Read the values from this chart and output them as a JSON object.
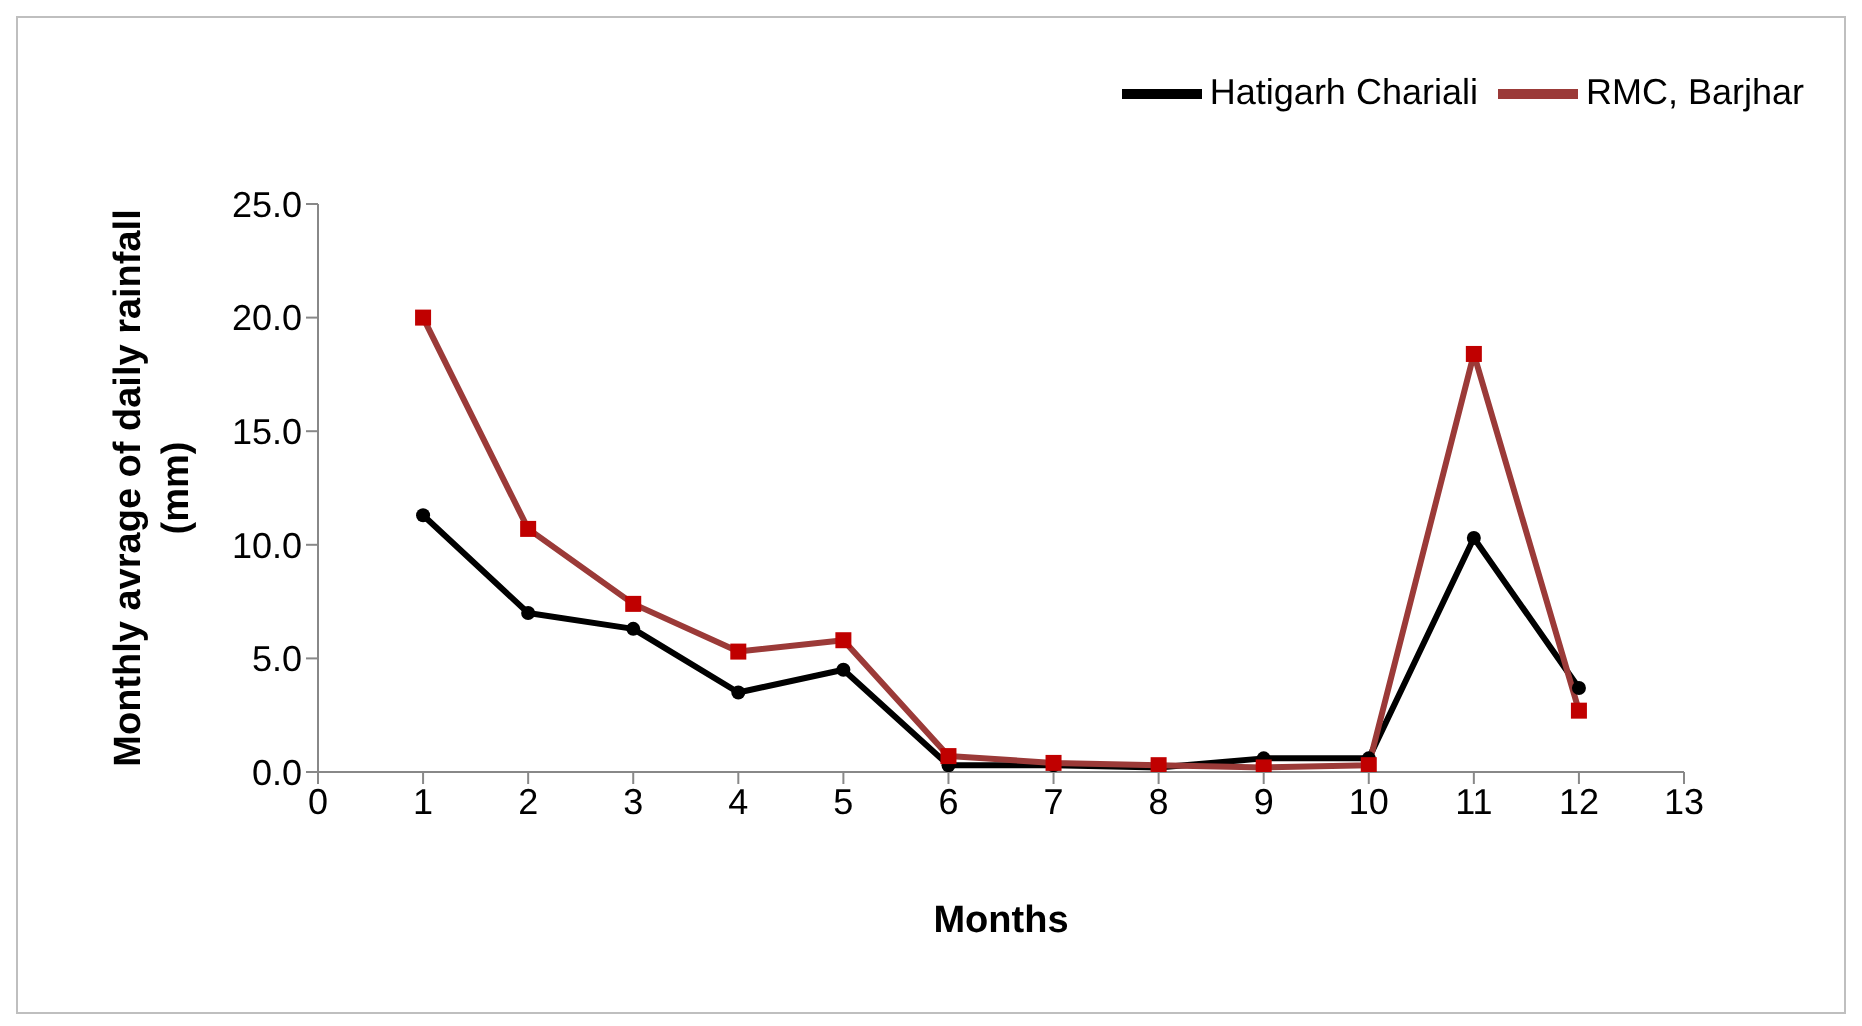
{
  "chart_data": {
    "type": "line",
    "xlabel": "Months",
    "ylabel": "Monthly avrage of daily rainfall\n(mm)",
    "x": [
      1,
      2,
      3,
      4,
      5,
      6,
      7,
      8,
      9,
      10,
      11,
      12
    ],
    "series": [
      {
        "name": "RMC, Barjhar",
        "color": "#9b3a38",
        "marker": "square",
        "values": [
          20.0,
          10.7,
          7.4,
          5.3,
          5.8,
          0.7,
          0.4,
          0.3,
          0.2,
          0.3,
          18.4,
          2.7
        ]
      },
      {
        "name": "Hatigarh Chariali",
        "color": "#000000",
        "marker": "circle",
        "values": [
          11.3,
          7.0,
          6.3,
          3.5,
          4.5,
          0.3,
          0.3,
          0.2,
          0.6,
          0.6,
          10.3,
          3.7
        ]
      }
    ],
    "xlim": [
      0,
      13
    ],
    "xticks": [
      0,
      1,
      2,
      3,
      4,
      5,
      6,
      7,
      8,
      9,
      10,
      11,
      12,
      13
    ],
    "ylim": [
      0,
      25
    ],
    "yticks": [
      {
        "value": 0,
        "label": "0.0"
      },
      {
        "value": 5,
        "label": "5.0"
      },
      {
        "value": 10,
        "label": "10.0"
      },
      {
        "value": 15,
        "label": "15.0"
      },
      {
        "value": 20,
        "label": "20.0"
      },
      {
        "value": 25,
        "label": "25.0"
      }
    ],
    "grid": false,
    "legend": "top right"
  }
}
